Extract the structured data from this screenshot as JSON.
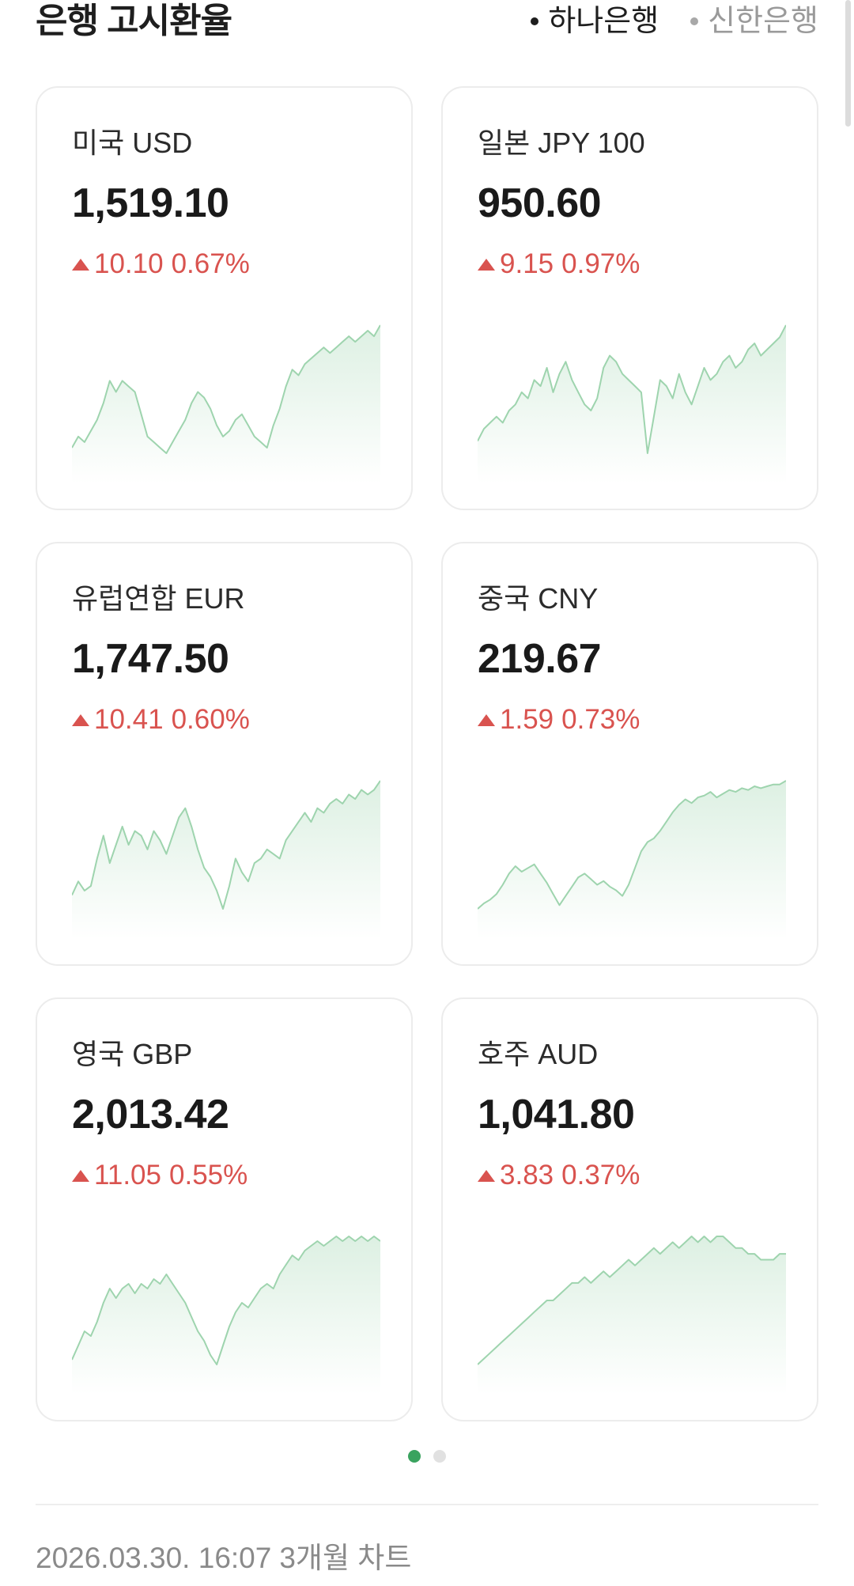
{
  "header": {
    "title": "은행 고시환율",
    "banks": [
      {
        "label": "하나은행",
        "active": true
      },
      {
        "label": "신한은행",
        "active": false
      }
    ]
  },
  "cards": [
    {
      "name": "미국 USD",
      "rate": "1,519.10",
      "change": "10.10",
      "change_pct": "0.67%",
      "direction": "up",
      "trend": [
        1501,
        1503,
        1502,
        1504,
        1506,
        1509,
        1513,
        1511,
        1513,
        1512,
        1511,
        1507,
        1503,
        1502,
        1501,
        1500,
        1502,
        1504,
        1506,
        1509,
        1511,
        1510,
        1508,
        1505,
        1503,
        1504,
        1506,
        1507,
        1505,
        1503,
        1502,
        1501,
        1505,
        1508,
        1512,
        1515,
        1514,
        1516,
        1517,
        1518,
        1519,
        1518,
        1519,
        1520,
        1521,
        1520,
        1521,
        1522,
        1521,
        1523
      ]
    },
    {
      "name": "일본 JPY 100",
      "rate": "950.60",
      "change": "9.15",
      "change_pct": "0.97%",
      "direction": "up",
      "trend": [
        938,
        940,
        941,
        942,
        941,
        943,
        944,
        946,
        945,
        948,
        947,
        950,
        946,
        949,
        951,
        948,
        946,
        944,
        943,
        945,
        950,
        952,
        951,
        949,
        948,
        947,
        946,
        936,
        942,
        948,
        947,
        945,
        949,
        946,
        944,
        947,
        950,
        948,
        949,
        951,
        952,
        950,
        951,
        953,
        954,
        952,
        953,
        954,
        955,
        957
      ]
    },
    {
      "name": "유럽연합 EUR",
      "rate": "1,747.50",
      "change": "10.41",
      "change_pct": "0.60%",
      "direction": "up",
      "trend": [
        1725,
        1728,
        1726,
        1727,
        1733,
        1738,
        1732,
        1736,
        1740,
        1736,
        1739,
        1738,
        1735,
        1739,
        1737,
        1734,
        1738,
        1742,
        1744,
        1740,
        1735,
        1731,
        1729,
        1726,
        1722,
        1727,
        1733,
        1730,
        1728,
        1732,
        1733,
        1735,
        1734,
        1733,
        1737,
        1739,
        1741,
        1743,
        1741,
        1744,
        1743,
        1745,
        1746,
        1745,
        1747,
        1746,
        1748,
        1747,
        1748,
        1750
      ]
    },
    {
      "name": "중국 CNY",
      "rate": "219.67",
      "change": "1.59",
      "change_pct": "0.73%",
      "direction": "up",
      "trend": [
        213.0,
        213.3,
        213.5,
        213.8,
        214.3,
        214.9,
        215.3,
        215.0,
        215.2,
        215.4,
        214.9,
        214.4,
        213.8,
        213.2,
        213.7,
        214.2,
        214.7,
        214.9,
        214.6,
        214.3,
        214.5,
        214.2,
        214.0,
        213.7,
        214.3,
        215.2,
        216.1,
        216.6,
        216.8,
        217.2,
        217.7,
        218.2,
        218.6,
        218.9,
        218.7,
        219.0,
        219.1,
        219.3,
        219.0,
        219.2,
        219.4,
        219.3,
        219.5,
        219.4,
        219.6,
        219.5,
        219.6,
        219.7,
        219.7,
        219.9
      ]
    },
    {
      "name": "영국 GBP",
      "rate": "2,013.42",
      "change": "11.05",
      "change_pct": "0.55%",
      "direction": "up",
      "trend": [
        1988,
        1991,
        1994,
        1993,
        1996,
        2000,
        2003,
        2001,
        2003,
        2004,
        2002,
        2004,
        2003,
        2005,
        2004,
        2006,
        2004,
        2002,
        2000,
        1997,
        1994,
        1992,
        1989,
        1987,
        1991,
        1995,
        1998,
        2000,
        1999,
        2001,
        2003,
        2004,
        2003,
        2006,
        2008,
        2010,
        2009,
        2011,
        2012,
        2013,
        2012,
        2013,
        2014,
        2013,
        2014,
        2013,
        2014,
        2013,
        2014,
        2013
      ]
    },
    {
      "name": "호주 AUD",
      "rate": "1,041.80",
      "change": "3.83",
      "change_pct": "0.37%",
      "direction": "up",
      "trend": [
        1022,
        1023,
        1024,
        1025,
        1026,
        1027,
        1028,
        1029,
        1030,
        1031,
        1032,
        1033,
        1033,
        1034,
        1035,
        1036,
        1036,
        1037,
        1036,
        1037,
        1038,
        1037,
        1038,
        1039,
        1040,
        1039,
        1040,
        1041,
        1042,
        1041,
        1042,
        1043,
        1042,
        1043,
        1044,
        1043,
        1044,
        1043,
        1044,
        1044,
        1043,
        1042,
        1042,
        1041,
        1041,
        1040,
        1040,
        1040,
        1041,
        1041
      ]
    }
  ],
  "pager": {
    "pages": 2,
    "current": 0
  },
  "footer": {
    "timestamp": "2026.03.30. 16:07",
    "range": "3개월 차트"
  },
  "colors": {
    "accent_green": "#3aa35f",
    "sparkline_stroke": "#9ed4ae",
    "up_red": "#d9534f"
  }
}
